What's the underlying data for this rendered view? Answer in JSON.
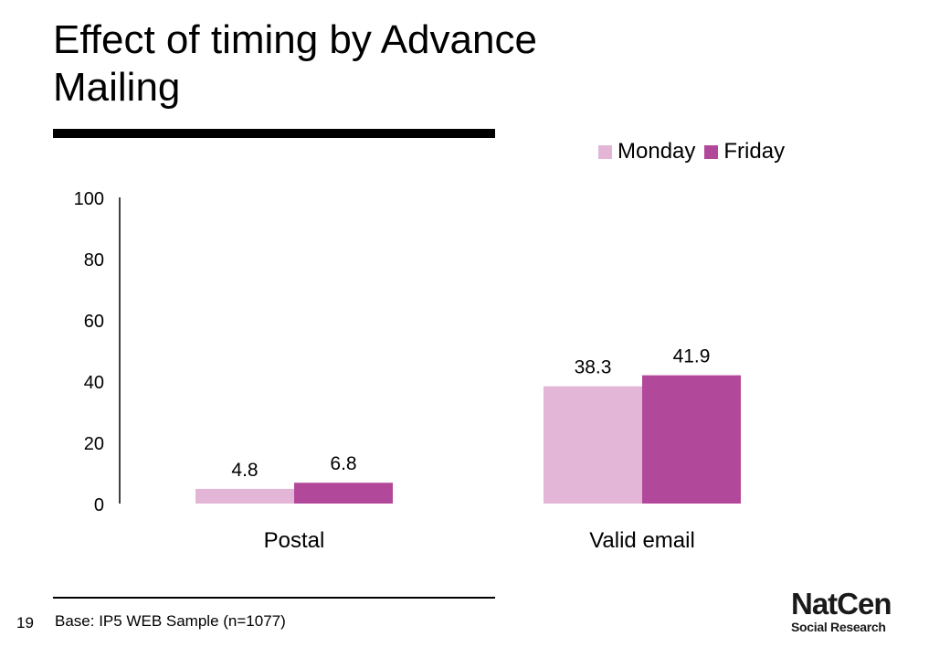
{
  "slide": {
    "title_line1": "Effect of timing by Advance",
    "title_line2": "Mailing",
    "page_number": "19",
    "base_note": "Base: IP5 WEB Sample (n=1077)",
    "logo_line1": "NatCen",
    "logo_line2": "Social Research"
  },
  "chart_data": {
    "type": "bar",
    "categories": [
      "Postal",
      "Valid email"
    ],
    "series": [
      {
        "name": "Monday",
        "values": [
          4.8,
          38.3
        ],
        "labels": [
          "4.8",
          "38.3"
        ],
        "color": "#e3b6d7"
      },
      {
        "name": "Friday",
        "values": [
          6.8,
          41.9
        ],
        "labels": [
          "6.8",
          "41.9"
        ],
        "color": "#b2489a"
      }
    ],
    "ylim": [
      0,
      100
    ],
    "yticks": [
      "0",
      "20",
      "40",
      "60",
      "80",
      "100"
    ],
    "ytick_values": [
      0,
      20,
      40,
      60,
      80,
      100
    ],
    "legend": "top-right",
    "grid": false
  }
}
